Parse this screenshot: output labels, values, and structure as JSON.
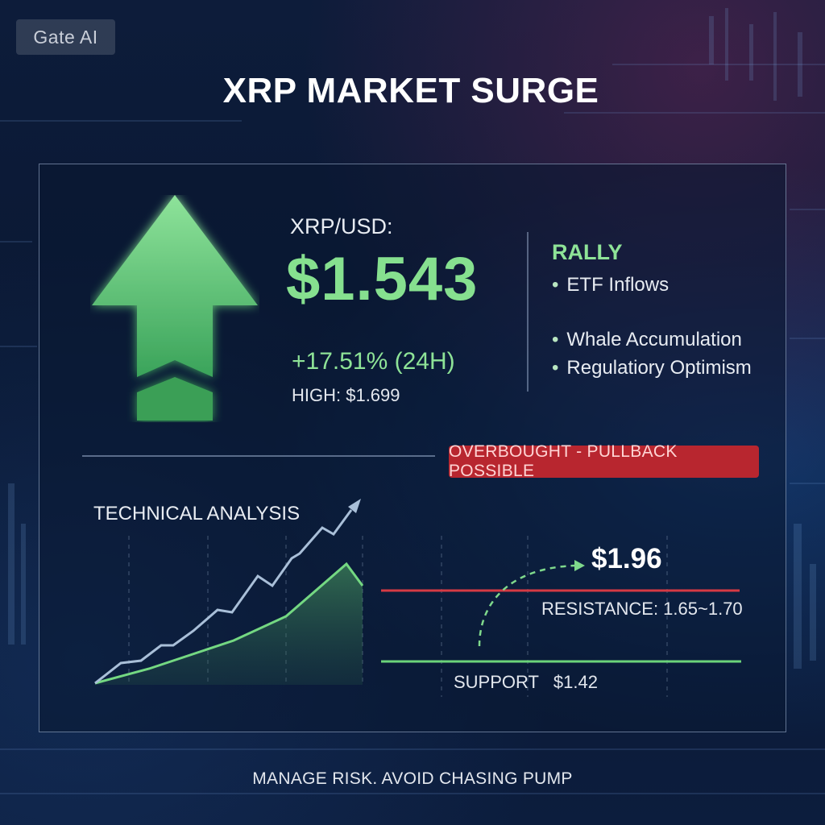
{
  "badge": "Gate AI",
  "title": "XRP MARKET  SURGE",
  "ticker": {
    "pair": "XRP/USD:",
    "price": "$1.543",
    "change": "+17.51% (24H)",
    "high": "HIGH: $1.699"
  },
  "rally": {
    "title": "RALLY",
    "items": [
      "ETF Inflows",
      "Whale Accumulation",
      "Regulatiory Optimism"
    ]
  },
  "warning": "OVERBOUGHT - PULLBACK POSSIBLE",
  "technical": {
    "title": "TECHNICAL ANALYSIS",
    "target": "$1.96",
    "resistance": "RESISTANCE: 1.65~1.70",
    "support": "SUPPORT   $1.42"
  },
  "footer": "MANAGE RISK. AVOID CHASING PUMP",
  "colors": {
    "accent_green": "#86e08f",
    "warning_red": "#b8262f",
    "resistance_line": "#d63a44",
    "support_line": "#6bd47a"
  },
  "icons": {
    "main": "up-arrow-icon",
    "trend": "trend-arrow-icon"
  }
}
